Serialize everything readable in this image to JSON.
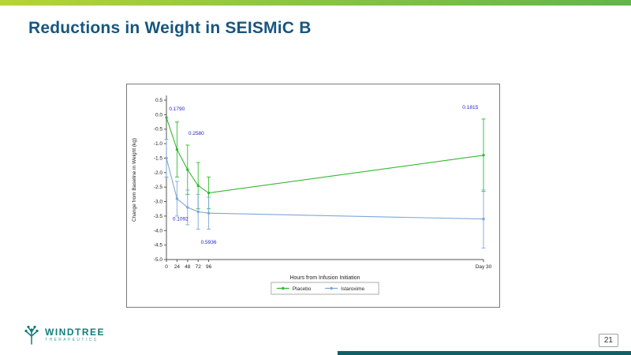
{
  "slide": {
    "title": "Reductions in Weight in SEISMiC B",
    "page_number": "21"
  },
  "logo": {
    "name": "WINDTREE",
    "subtitle": "THERAPEUTICS"
  },
  "colors": {
    "top_bar_left": "#b7d433",
    "top_bar_right": "#62b54a",
    "title": "#17567e",
    "teal": "#0f7e79",
    "footer_bar": "#0f5f66",
    "annotation": "#2323c8",
    "axis": "#555555",
    "tick_text": "#222222"
  },
  "chart_data": {
    "type": "line",
    "title": "",
    "xlabel": "Hours from Infusion Initiation",
    "ylabel": "Change from Baseline in Weight (kg)",
    "ylim": [
      -5.0,
      0.5
    ],
    "ytick_step": 0.5,
    "x_max": 720,
    "x_ticks": [
      {
        "x": 0,
        "label": "0"
      },
      {
        "x": 24,
        "label": "24"
      },
      {
        "x": 48,
        "label": "48"
      },
      {
        "x": 72,
        "label": "72"
      },
      {
        "x": 96,
        "label": "96"
      },
      {
        "x": 720,
        "label": "Day 30"
      }
    ],
    "series": [
      {
        "name": "Placebo",
        "color": "#33b933",
        "points": [
          {
            "x": 0,
            "y": -0.1
          },
          {
            "x": 24,
            "y": -1.2,
            "err": 0.95
          },
          {
            "x": 48,
            "y": -1.9,
            "err": 0.85
          },
          {
            "x": 72,
            "y": -2.45,
            "err": 0.8
          },
          {
            "x": 96,
            "y": -2.7,
            "err": 0.55
          },
          {
            "x": 720,
            "y": -1.4,
            "err": 1.25
          }
        ]
      },
      {
        "name": "Istaroxime",
        "color": "#7da7d9",
        "points": [
          {
            "x": 0,
            "y": -1.5,
            "err": 0.65
          },
          {
            "x": 24,
            "y": -2.9,
            "err": 0.6
          },
          {
            "x": 48,
            "y": -3.2,
            "err": 0.6
          },
          {
            "x": 72,
            "y": -3.35,
            "err": 0.6
          },
          {
            "x": 96,
            "y": -3.4,
            "err": 0.55
          },
          {
            "x": 720,
            "y": -3.6,
            "err": 1.0
          }
        ]
      }
    ],
    "annotations": [
      {
        "label": "0.1790",
        "x": 6,
        "y": 0.15,
        "anchor": "start"
      },
      {
        "label": "0.2580",
        "x": 50,
        "y": -0.7,
        "anchor": "start"
      },
      {
        "label": "0.1092",
        "x": 14,
        "y": -3.65,
        "anchor": "start"
      },
      {
        "label": "0.5936",
        "x": 96,
        "y": -4.45,
        "anchor": "middle"
      },
      {
        "label": "0.1815",
        "x": 690,
        "y": 0.2,
        "anchor": "middle"
      }
    ],
    "legend": {
      "position": "bottom",
      "entries": [
        "Placebo",
        "Istaroxime"
      ]
    }
  }
}
